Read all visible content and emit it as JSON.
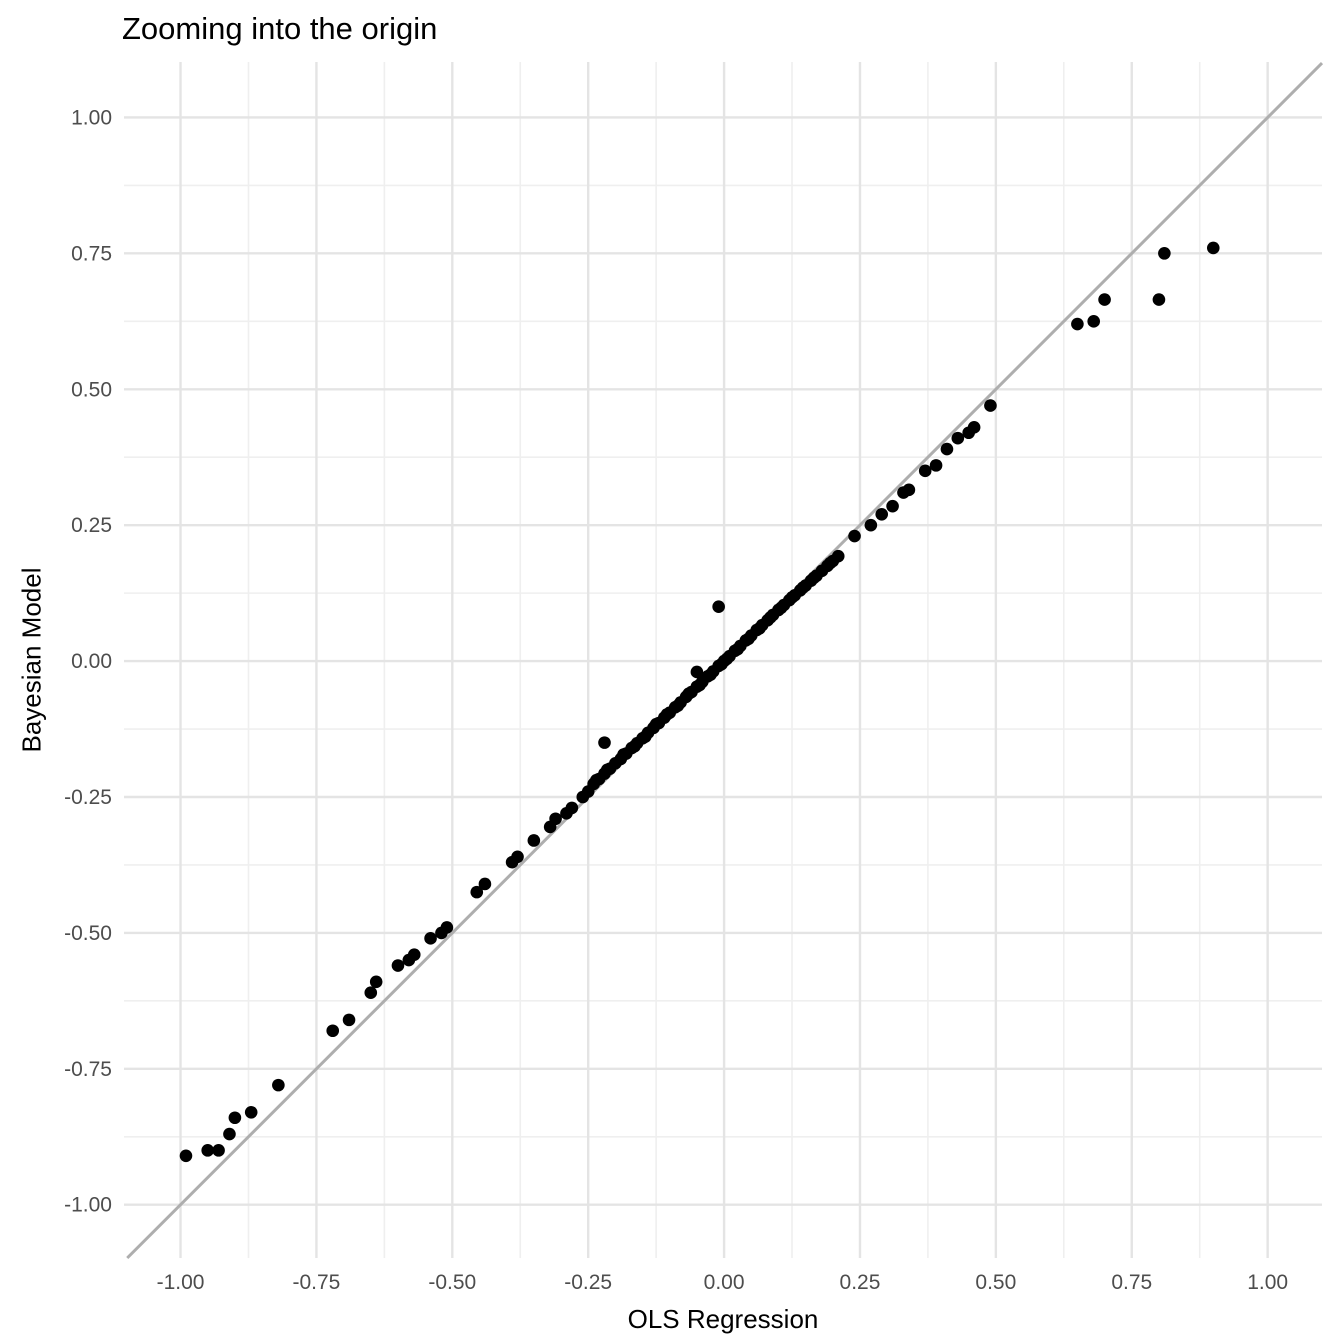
{
  "title": "Zooming into the origin",
  "colors": {
    "background": "#FFFFFF",
    "grid_major": "#E4E4E4",
    "grid_minor": "#EFEFEF",
    "reference_line": "#AEAEAE",
    "points": "#000000",
    "tick_label": "#4D4D4D",
    "title_text": "#000000"
  },
  "chart_data": {
    "type": "scatter",
    "title": "Zooming into the origin",
    "xlabel": "OLS Regression",
    "ylabel": "Bayesian Model",
    "xlim": [
      -1.104,
      1.1
    ],
    "ylim": [
      -1.098,
      1.102
    ],
    "x_tick_values": [
      -1.0,
      -0.75,
      -0.5,
      -0.25,
      0.0,
      0.25,
      0.5,
      0.75,
      1.0
    ],
    "x_tick_labels": [
      "-1.00",
      "-0.75",
      "-0.50",
      "-0.25",
      "0.00",
      "0.25",
      "0.50",
      "0.75",
      "1.00"
    ],
    "y_tick_values": [
      -1.0,
      -0.75,
      -0.5,
      -0.25,
      0.0,
      0.25,
      0.5,
      0.75,
      1.0
    ],
    "y_tick_labels": [
      "-1.00",
      "-0.75",
      "-0.50",
      "-0.25",
      "0.00",
      "0.25",
      "0.50",
      "0.75",
      "1.00"
    ],
    "x_minor_ticks": [
      -1.125,
      -0.875,
      -0.625,
      -0.375,
      -0.125,
      0.125,
      0.375,
      0.625,
      0.875,
      1.125
    ],
    "y_minor_ticks": [
      -1.125,
      -0.875,
      -0.625,
      -0.375,
      -0.125,
      0.125,
      0.375,
      0.625,
      0.875,
      1.125
    ],
    "grid": "major+minor",
    "legend": "none",
    "point_radius_px": 6.3,
    "reference_line": {
      "type": "identity",
      "slope": 1,
      "intercept": 0
    },
    "points": [
      [
        -0.99,
        -0.91
      ],
      [
        -0.95,
        -0.9
      ],
      [
        -0.93,
        -0.9
      ],
      [
        -0.91,
        -0.87
      ],
      [
        -0.9,
        -0.84
      ],
      [
        -0.87,
        -0.83
      ],
      [
        -0.82,
        -0.78
      ],
      [
        -0.72,
        -0.68
      ],
      [
        -0.69,
        -0.66
      ],
      [
        -0.65,
        -0.61
      ],
      [
        -0.64,
        -0.59
      ],
      [
        -0.6,
        -0.56
      ],
      [
        -0.58,
        -0.55
      ],
      [
        -0.57,
        -0.54
      ],
      [
        -0.54,
        -0.51
      ],
      [
        -0.52,
        -0.5
      ],
      [
        -0.51,
        -0.49
      ],
      [
        -0.455,
        -0.425
      ],
      [
        -0.44,
        -0.41
      ],
      [
        -0.39,
        -0.37
      ],
      [
        -0.38,
        -0.36
      ],
      [
        -0.35,
        -0.33
      ],
      [
        -0.32,
        -0.305
      ],
      [
        -0.31,
        -0.29
      ],
      [
        -0.29,
        -0.28
      ],
      [
        -0.28,
        -0.27
      ],
      [
        -0.26,
        -0.25
      ],
      [
        -0.25,
        -0.24
      ],
      [
        -0.22,
        -0.15
      ],
      [
        -0.05,
        -0.02
      ],
      [
        -0.01,
        0.1
      ],
      [
        -0.24,
        -0.226
      ],
      [
        -0.235,
        -0.219
      ],
      [
        -0.23,
        -0.217
      ],
      [
        -0.22,
        -0.207
      ],
      [
        -0.215,
        -0.2
      ],
      [
        -0.21,
        -0.198
      ],
      [
        -0.2,
        -0.188
      ],
      [
        -0.19,
        -0.18
      ],
      [
        -0.185,
        -0.172
      ],
      [
        -0.18,
        -0.17
      ],
      [
        -0.17,
        -0.16
      ],
      [
        -0.165,
        -0.157
      ],
      [
        -0.16,
        -0.151
      ],
      [
        -0.15,
        -0.142
      ],
      [
        -0.145,
        -0.139
      ],
      [
        -0.14,
        -0.132
      ],
      [
        -0.13,
        -0.123
      ],
      [
        -0.125,
        -0.116
      ],
      [
        -0.12,
        -0.114
      ],
      [
        -0.11,
        -0.104
      ],
      [
        -0.105,
        -0.098
      ],
      [
        -0.1,
        -0.095
      ],
      [
        -0.09,
        -0.085
      ],
      [
        -0.085,
        -0.082
      ],
      [
        -0.08,
        -0.076
      ],
      [
        -0.07,
        -0.066
      ],
      [
        -0.065,
        -0.06
      ],
      [
        -0.06,
        -0.057
      ],
      [
        -0.05,
        -0.047
      ],
      [
        -0.045,
        -0.044
      ],
      [
        -0.04,
        -0.038
      ],
      [
        -0.03,
        -0.028
      ],
      [
        -0.025,
        -0.025
      ],
      [
        -0.02,
        -0.019
      ],
      [
        -0.01,
        -0.009
      ],
      [
        -0.005,
        -0.006
      ],
      [
        0,
        0
      ],
      [
        0.005,
        0.004
      ],
      [
        0.01,
        0.009
      ],
      [
        0.02,
        0.019
      ],
      [
        0.025,
        0.022
      ],
      [
        0.03,
        0.028
      ],
      [
        0.04,
        0.038
      ],
      [
        0.045,
        0.041
      ],
      [
        0.05,
        0.047
      ],
      [
        0.06,
        0.057
      ],
      [
        0.065,
        0.06
      ],
      [
        0.07,
        0.066
      ],
      [
        0.08,
        0.075
      ],
      [
        0.085,
        0.08
      ],
      [
        0.09,
        0.085
      ],
      [
        0.1,
        0.094
      ],
      [
        0.105,
        0.098
      ],
      [
        0.11,
        0.103
      ],
      [
        0.12,
        0.112
      ],
      [
        0.125,
        0.117
      ],
      [
        0.13,
        0.121
      ],
      [
        0.14,
        0.13
      ],
      [
        0.145,
        0.135
      ],
      [
        0.15,
        0.139
      ],
      [
        0.16,
        0.148
      ],
      [
        0.165,
        0.153
      ],
      [
        0.17,
        0.157
      ],
      [
        0.18,
        0.166
      ],
      [
        0.19,
        0.175
      ],
      [
        0.195,
        0.18
      ],
      [
        0.2,
        0.184
      ],
      [
        0.21,
        0.193
      ],
      [
        0.24,
        0.23
      ],
      [
        0.27,
        0.25
      ],
      [
        0.29,
        0.27
      ],
      [
        0.31,
        0.285
      ],
      [
        0.33,
        0.31
      ],
      [
        0.34,
        0.315
      ],
      [
        0.37,
        0.35
      ],
      [
        0.39,
        0.36
      ],
      [
        0.41,
        0.39
      ],
      [
        0.43,
        0.41
      ],
      [
        0.45,
        0.42
      ],
      [
        0.46,
        0.43
      ],
      [
        0.49,
        0.47
      ],
      [
        0.65,
        0.62
      ],
      [
        0.68,
        0.625
      ],
      [
        0.7,
        0.665
      ],
      [
        0.8,
        0.665
      ],
      [
        0.81,
        0.75
      ],
      [
        0.9,
        0.76
      ]
    ]
  }
}
